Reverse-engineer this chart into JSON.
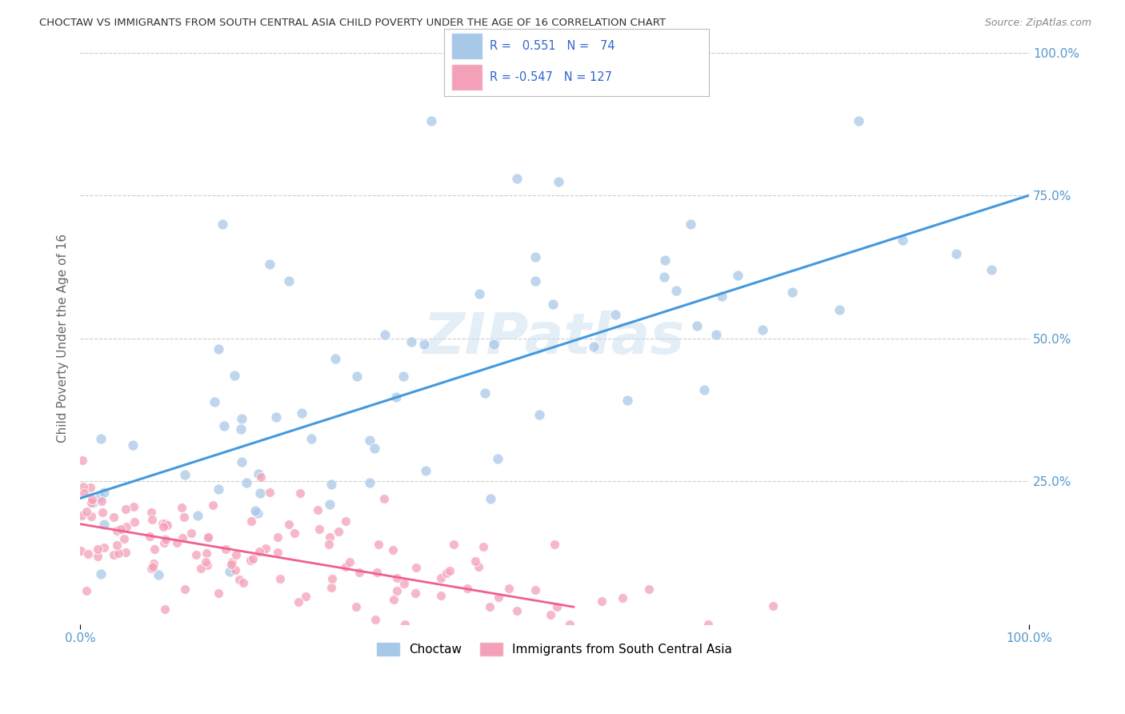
{
  "title": "CHOCTAW VS IMMIGRANTS FROM SOUTH CENTRAL ASIA CHILD POVERTY UNDER THE AGE OF 16 CORRELATION CHART",
  "source": "Source: ZipAtlas.com",
  "ylabel": "Child Poverty Under the Age of 16",
  "xlim": [
    0,
    1
  ],
  "ylim": [
    0,
    1
  ],
  "background_color": "#ffffff",
  "watermark": "ZIPatlas",
  "legend_label1": "Choctaw",
  "legend_label2": "Immigrants from South Central Asia",
  "r1": 0.551,
  "n1": 74,
  "r2": -0.547,
  "n2": 127,
  "blue_color": "#a8c8e8",
  "pink_color": "#f4a0b8",
  "blue_line_color": "#4499dd",
  "pink_line_color": "#f06090",
  "title_color": "#333333",
  "source_color": "#888888",
  "axis_label_color": "#5599cc",
  "legend_r_color": "#3366cc",
  "grid_color": "#cccccc",
  "blue_trend_x0": 0.0,
  "blue_trend_x1": 1.0,
  "blue_trend_y0": 0.22,
  "blue_trend_y1": 0.75,
  "pink_trend_x0": 0.0,
  "pink_trend_x1": 0.52,
  "pink_trend_y0": 0.175,
  "pink_trend_y1": 0.03
}
